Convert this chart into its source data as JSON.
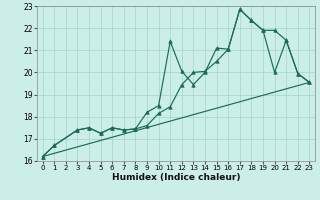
{
  "xlabel": "Humidex (Indice chaleur)",
  "xlim": [
    -0.5,
    23.5
  ],
  "ylim": [
    16,
    23
  ],
  "yticks": [
    16,
    17,
    18,
    19,
    20,
    21,
    22,
    23
  ],
  "xticks": [
    0,
    1,
    2,
    3,
    4,
    5,
    6,
    7,
    8,
    9,
    10,
    11,
    12,
    13,
    14,
    15,
    16,
    17,
    18,
    19,
    20,
    21,
    22,
    23
  ],
  "bg_color": "#cceee8",
  "grid_color": "#aad8d0",
  "line_color": "#1a6b58",
  "line1_x": [
    0,
    1,
    3,
    4,
    5,
    6,
    7,
    8,
    9,
    10,
    11,
    12,
    13,
    14,
    15,
    16,
    17,
    18,
    19,
    20,
    21,
    22,
    23
  ],
  "line1_y": [
    16.2,
    16.7,
    17.4,
    17.5,
    17.25,
    17.5,
    17.4,
    17.45,
    18.2,
    18.5,
    21.4,
    20.05,
    19.45,
    20.0,
    21.1,
    21.05,
    22.85,
    22.35,
    21.9,
    20.0,
    21.45,
    19.95,
    19.55
  ],
  "line2_x": [
    0,
    1,
    3,
    4,
    5,
    6,
    7,
    8,
    9,
    10,
    11,
    12,
    13,
    14,
    15,
    16,
    17,
    18,
    19,
    20,
    21,
    22,
    23
  ],
  "line2_y": [
    16.2,
    16.7,
    17.4,
    17.5,
    17.25,
    17.5,
    17.4,
    17.45,
    17.6,
    18.15,
    18.45,
    19.45,
    20.0,
    20.05,
    20.5,
    21.05,
    22.85,
    22.35,
    21.9,
    21.9,
    21.45,
    19.95,
    19.55
  ],
  "line3_x": [
    0,
    23
  ],
  "line3_y": [
    16.2,
    19.55
  ]
}
